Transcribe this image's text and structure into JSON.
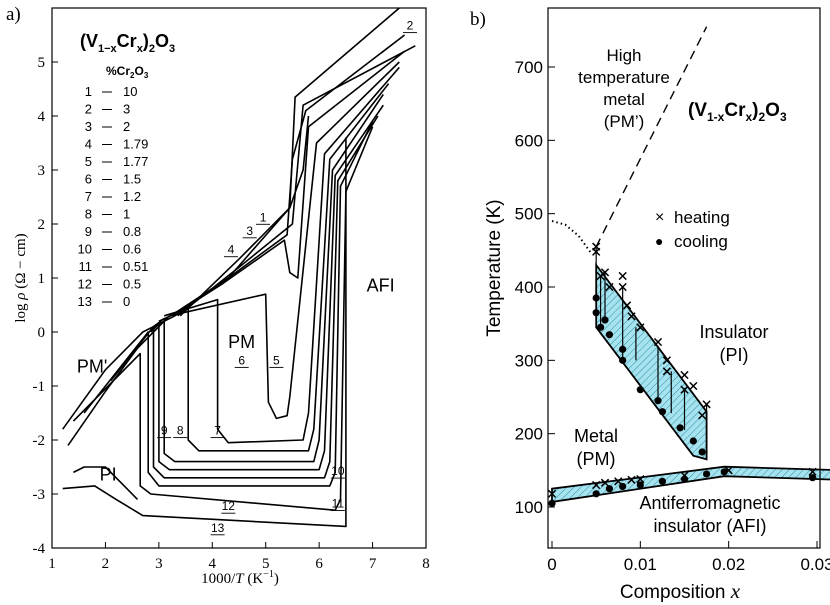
{
  "chart_data": [
    {
      "panel_label": "a)",
      "type": "line",
      "xlabel_parts": [
        "1000/",
        "T",
        " (K",
        "−1",
        ")"
      ],
      "ylabel_parts": [
        "log ",
        "ρ",
        " (Ω − cm)"
      ],
      "xlim": [
        1,
        8
      ],
      "ylim": [
        -4,
        6
      ],
      "xticks": [
        1,
        2,
        3,
        4,
        5,
        6,
        7,
        8
      ],
      "yticks": [
        -4,
        -3,
        -2,
        -1,
        0,
        1,
        2,
        3,
        4,
        5
      ],
      "grid": false,
      "formula": {
        "a": "(V",
        "b": "1−x",
        "c": "Cr",
        "d": "x",
        "e": ")",
        "f": "2",
        "g": "O",
        "h": "3"
      },
      "legend_header": {
        "a": "%Cr",
        "b": "2",
        "c": "O",
        "d": "3"
      },
      "legend": [
        {
          "n": "1",
          "v": "10"
        },
        {
          "n": "2",
          "v": "3"
        },
        {
          "n": "3",
          "v": "2"
        },
        {
          "n": "4",
          "v": "1.79"
        },
        {
          "n": "5",
          "v": "1.77"
        },
        {
          "n": "6",
          "v": "1.5"
        },
        {
          "n": "7",
          "v": "1.2"
        },
        {
          "n": "8",
          "v": "1"
        },
        {
          "n": "9",
          "v": "0.8"
        },
        {
          "n": "10",
          "v": "0.6"
        },
        {
          "n": "11",
          "v": "0.51"
        },
        {
          "n": "12",
          "v": "0.5"
        },
        {
          "n": "13",
          "v": "0"
        }
      ],
      "region_labels": [
        {
          "text": "PM'",
          "x": 1.75,
          "y": -0.75
        },
        {
          "text": "PM",
          "x": 4.55,
          "y": -0.3
        },
        {
          "text": "PI",
          "x": 2.05,
          "y": -2.75
        },
        {
          "text": "AFI",
          "x": 7.15,
          "y": 0.75
        }
      ],
      "series": [
        {
          "label": "1",
          "label_at": [
            4.95,
            2.05
          ],
          "points": [
            [
              3.4,
              0.3
            ],
            [
              4.5,
              1.35
            ],
            [
              5.45,
              2.3
            ],
            [
              5.55,
              4.35
            ],
            [
              7.5,
              6.0
            ]
          ]
        },
        {
          "label": "2",
          "label_at": [
            7.7,
            5.6
          ],
          "points": [
            [
              3.35,
              0.3
            ],
            [
              4.5,
              1.2
            ],
            [
              5.5,
              2.0
            ],
            [
              5.7,
              4.2
            ],
            [
              7.8,
              5.3
            ]
          ]
        },
        {
          "label": "3",
          "label_at": [
            4.7,
            1.8
          ],
          "points": [
            [
              3.3,
              0.3
            ],
            [
              4.3,
              1.0
            ],
            [
              5.4,
              1.8
            ],
            [
              5.5,
              3.2
            ],
            [
              5.75,
              4.1
            ],
            [
              7.6,
              5.5
            ]
          ]
        },
        {
          "label": "4",
          "label_at": [
            4.35,
            1.45
          ],
          "points": [
            [
              3.25,
              0.3
            ],
            [
              4.2,
              0.9
            ],
            [
              5.35,
              1.7
            ],
            [
              5.45,
              1.1
            ],
            [
              5.6,
              1.0
            ],
            [
              5.8,
              3.8
            ],
            [
              7.6,
              5.2
            ]
          ]
        },
        {
          "label": "5",
          "label_at": [
            5.2,
            -0.6
          ],
          "points": [
            [
              3.2,
              0.3
            ],
            [
              5.0,
              0.7
            ],
            [
              5.05,
              -1.3
            ],
            [
              5.2,
              -1.6
            ],
            [
              5.4,
              -1.55
            ],
            [
              5.45,
              -1.2
            ],
            [
              5.95,
              3.5
            ],
            [
              7.5,
              5.0
            ]
          ]
        },
        {
          "label": "6",
          "label_at": [
            4.55,
            -0.6
          ],
          "points": [
            [
              3.1,
              0.3
            ],
            [
              4.1,
              0.6
            ],
            [
              4.1,
              -1.8
            ],
            [
              4.3,
              -2.05
            ],
            [
              5.7,
              -2.0
            ],
            [
              5.8,
              -1.5
            ],
            [
              6.1,
              3.3
            ],
            [
              7.5,
              4.9
            ]
          ]
        },
        {
          "label": "7",
          "label_at": [
            4.1,
            -1.9
          ],
          "points": [
            [
              3.0,
              0.2
            ],
            [
              3.55,
              0.45
            ],
            [
              3.55,
              -2.0
            ],
            [
              3.75,
              -2.2
            ],
            [
              5.8,
              -2.2
            ],
            [
              5.9,
              -1.8
            ],
            [
              6.2,
              3.2
            ],
            [
              7.3,
              4.6
            ]
          ]
        },
        {
          "label": "8",
          "label_at": [
            3.4,
            -1.9
          ],
          "points": [
            [
              2.9,
              0.1
            ],
            [
              3.1,
              0.25
            ],
            [
              3.1,
              -2.25
            ],
            [
              3.3,
              -2.4
            ],
            [
              5.9,
              -2.4
            ],
            [
              6.0,
              -2.0
            ],
            [
              6.25,
              3.0
            ],
            [
              7.2,
              4.4
            ]
          ]
        },
        {
          "label": "9",
          "label_at": [
            3.1,
            -1.9
          ],
          "points": [
            [
              2.85,
              0.0
            ],
            [
              3.0,
              0.15
            ],
            [
              3.0,
              -2.4
            ],
            [
              3.2,
              -2.55
            ],
            [
              6.0,
              -2.55
            ],
            [
              6.1,
              -2.2
            ],
            [
              6.3,
              2.9
            ],
            [
              7.2,
              4.2
            ]
          ]
        },
        {
          "label": "10",
          "label_at": [
            6.35,
            -2.65
          ],
          "points": [
            [
              2.1,
              -0.9
            ],
            [
              2.9,
              0.1
            ],
            [
              2.9,
              -2.5
            ],
            [
              3.1,
              -2.7
            ],
            [
              6.1,
              -2.7
            ],
            [
              6.2,
              -2.4
            ],
            [
              6.35,
              2.8
            ],
            [
              7.1,
              4.0
            ]
          ]
        },
        {
          "label": "11",
          "label_at": [
            6.35,
            -3.25
          ],
          "points": [
            [
              1.6,
              -1.5
            ],
            [
              2.8,
              0.0
            ],
            [
              2.8,
              -2.6
            ],
            [
              3.0,
              -2.85
            ],
            [
              6.2,
              -2.85
            ],
            [
              6.3,
              -2.6
            ],
            [
              6.4,
              2.7
            ],
            [
              7.0,
              3.9
            ]
          ]
        },
        {
          "label": "12",
          "label_at": [
            4.3,
            -3.3
          ],
          "points": [
            [
              1.4,
              -1.65
            ],
            [
              2.65,
              -0.4
            ],
            [
              2.65,
              -2.85
            ],
            [
              2.85,
              -3.0
            ],
            [
              6.3,
              -3.3
            ],
            [
              6.4,
              -3.1
            ],
            [
              6.5,
              2.6
            ],
            [
              7.0,
              3.8
            ]
          ]
        },
        {
          "label": "13",
          "label_at": [
            4.1,
            -3.7
          ],
          "points": [
            [
              1.2,
              -2.9
            ],
            [
              1.8,
              -2.85
            ],
            [
              2.2,
              -3.1
            ],
            [
              2.7,
              -3.4
            ],
            [
              6.5,
              -3.6
            ],
            [
              6.5,
              3.6
            ]
          ]
        },
        {
          "label": "",
          "points": [
            [
              1.3,
              -2.1
            ],
            [
              2.0,
              -1.1
            ],
            [
              2.6,
              -0.3
            ],
            [
              3.2,
              0.3
            ]
          ]
        },
        {
          "label": "",
          "points": [
            [
              1.2,
              -1.8
            ],
            [
              2.0,
              -0.7
            ],
            [
              2.7,
              0.0
            ],
            [
              3.3,
              0.3
            ]
          ]
        },
        {
          "label": "",
          "points": [
            [
              1.4,
              -2.6
            ],
            [
              1.6,
              -2.5
            ],
            [
              2.0,
              -2.5
            ],
            [
              2.3,
              -2.8
            ],
            [
              2.6,
              -3.1
            ]
          ]
        },
        {
          "label": "",
          "points": [
            [
              3.3,
              0.35
            ],
            [
              4.3,
              1.0
            ],
            [
              5.45,
              2.3
            ],
            [
              5.7,
              3.0
            ],
            [
              5.8,
              4.0
            ]
          ]
        }
      ]
    },
    {
      "panel_label": "b)",
      "type": "scatter",
      "xlabel": "Composition",
      "xlabel_var": "x",
      "ylabel": "Temperature (K)",
      "xlim": [
        0,
        0.033
      ],
      "ylim": [
        80,
        760
      ],
      "xticks": [
        0,
        0.01,
        0.02,
        0.03
      ],
      "xtick_labels": [
        "0",
        "0.01",
        "0.02",
        "0.03"
      ],
      "yticks": [
        100,
        200,
        300,
        400,
        500,
        600,
        700
      ],
      "grid": false,
      "formula": {
        "a": "(V",
        "b": "1-x",
        "c": "Cr",
        "d": "x",
        "e": ")",
        "f": "2",
        "g": "O",
        "h": "3"
      },
      "legend": [
        {
          "marker": "×",
          "label": "heating"
        },
        {
          "marker": "●",
          "label": "cooling"
        }
      ],
      "region_labels": [
        {
          "lines": [
            "High",
            "temperature",
            "metal",
            "(PM’)"
          ]
        },
        {
          "lines": [
            "Insulator",
            "(PI)"
          ]
        },
        {
          "lines": [
            "Metal",
            "(PM)"
          ]
        },
        {
          "lines": [
            "Antiferromagnetic",
            "insulator (AFI)"
          ]
        }
      ],
      "heating": [
        [
          0,
          118
        ],
        [
          0.005,
          455
        ],
        [
          0.005,
          448
        ],
        [
          0.0055,
          415
        ],
        [
          0.006,
          420
        ],
        [
          0.0065,
          400
        ],
        [
          0.008,
          415
        ],
        [
          0.008,
          400
        ],
        [
          0.0085,
          375
        ],
        [
          0.009,
          360
        ],
        [
          0.01,
          345
        ],
        [
          0.012,
          325
        ],
        [
          0.013,
          300
        ],
        [
          0.013,
          285
        ],
        [
          0.015,
          280
        ],
        [
          0.015,
          260
        ],
        [
          0.016,
          265
        ],
        [
          0.0175,
          240
        ],
        [
          0.017,
          225
        ],
        [
          0.005,
          130
        ],
        [
          0.006,
          133
        ],
        [
          0.0075,
          135
        ],
        [
          0.009,
          137
        ],
        [
          0.01,
          138
        ],
        [
          0.015,
          143
        ],
        [
          0.02,
          150
        ],
        [
          0.0295,
          148
        ]
      ],
      "cooling": [
        [
          0,
          105
        ],
        [
          0.005,
          385
        ],
        [
          0.005,
          365
        ],
        [
          0.0055,
          345
        ],
        [
          0.006,
          355
        ],
        [
          0.0065,
          335
        ],
        [
          0.008,
          315
        ],
        [
          0.008,
          300
        ],
        [
          0.01,
          260
        ],
        [
          0.012,
          245
        ],
        [
          0.0125,
          230
        ],
        [
          0.0145,
          208
        ],
        [
          0.016,
          190
        ],
        [
          0.017,
          175
        ],
        [
          0.005,
          118
        ],
        [
          0.0065,
          125
        ],
        [
          0.008,
          128
        ],
        [
          0.01,
          130
        ],
        [
          0.0125,
          135
        ],
        [
          0.015,
          138
        ],
        [
          0.0175,
          145
        ],
        [
          0.0195,
          148
        ],
        [
          0.0295,
          140
        ]
      ],
      "error_bars": [
        [
          0.005,
          385,
          455
        ],
        [
          0.0055,
          345,
          415
        ],
        [
          0.006,
          355,
          420
        ],
        [
          0.008,
          300,
          400
        ],
        [
          0.0095,
          300,
          345
        ],
        [
          0.012,
          245,
          320
        ],
        [
          0.0135,
          228,
          285
        ],
        [
          0.015,
          205,
          262
        ],
        [
          0.0175,
          175,
          240
        ]
      ],
      "pi_band": [
        [
          0.005,
          430
        ],
        [
          0.0175,
          230
        ],
        [
          0.0175,
          165
        ],
        [
          0.016,
          170
        ],
        [
          0.005,
          345
        ]
      ],
      "afi_band": [
        [
          0,
          125
        ],
        [
          0.0195,
          155
        ],
        [
          0.033,
          150
        ],
        [
          0.033,
          137
        ],
        [
          0.0195,
          142
        ],
        [
          0,
          107
        ]
      ],
      "dashed_line": [
        [
          0.005,
          455
        ],
        [
          0.0175,
          755
        ]
      ],
      "dotted_line": [
        [
          0,
          490
        ],
        [
          0.0015,
          485
        ],
        [
          0.003,
          470
        ],
        [
          0.0045,
          445
        ]
      ]
    }
  ]
}
